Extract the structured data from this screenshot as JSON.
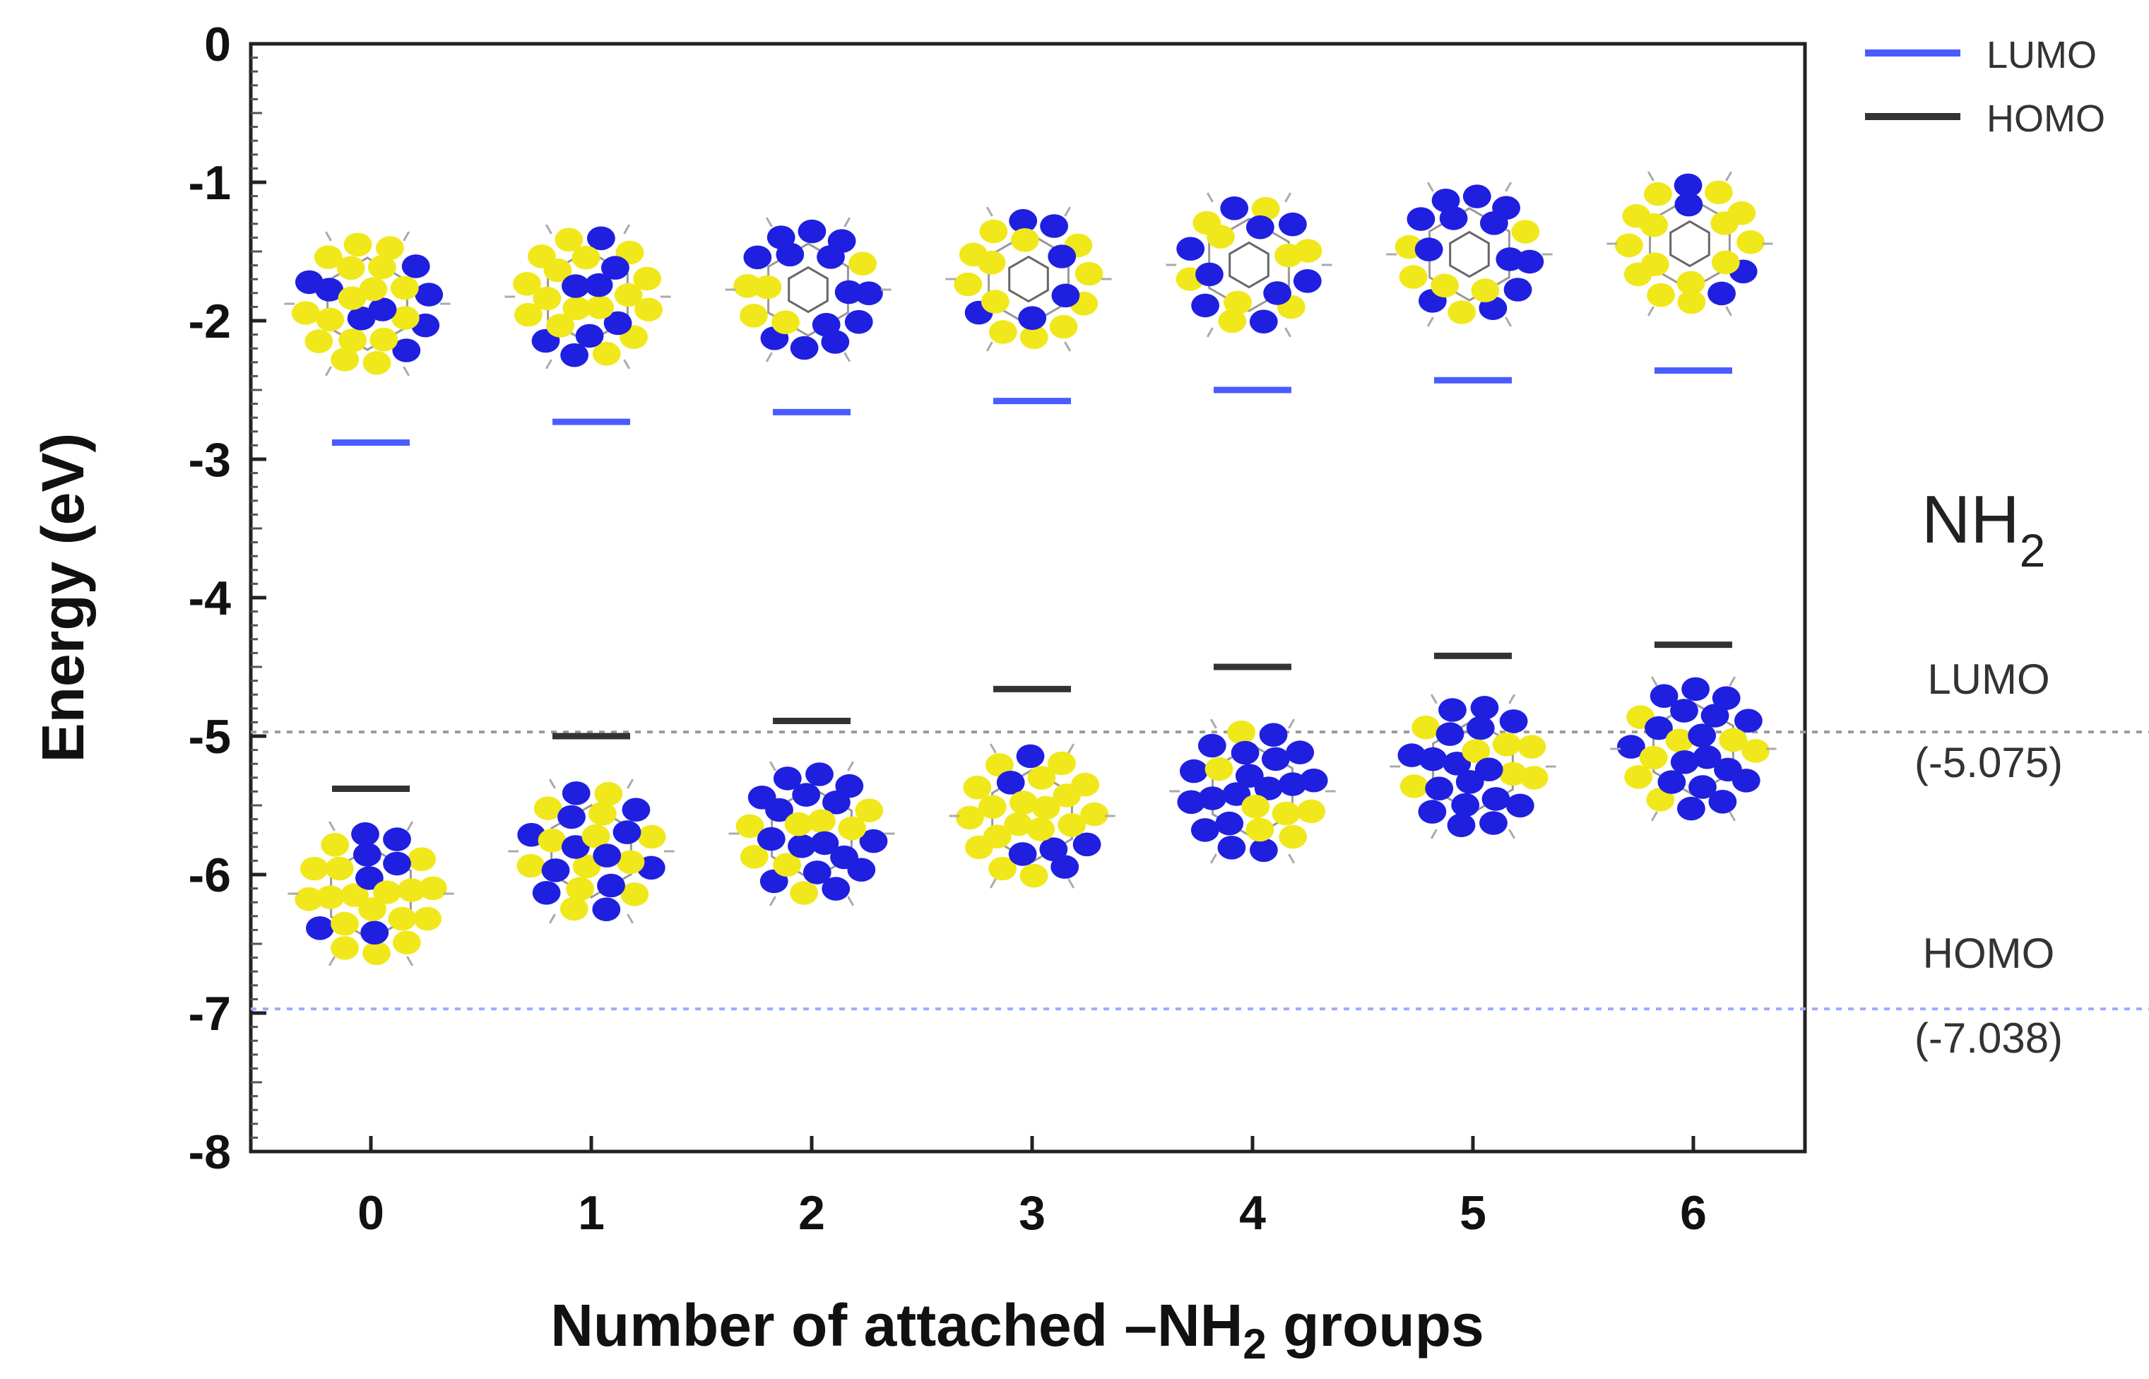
{
  "chart_data": {
    "type": "scatter",
    "xlabel_main": "Number of attached –NH",
    "xlabel_sub": "2",
    "xlabel_tail": " groups",
    "ylabel": "Energy (eV)",
    "ylim": [
      -8,
      0
    ],
    "yticks": [
      "0",
      "-1",
      "-2",
      "-3",
      "-4",
      "-5",
      "-6",
      "-7",
      "-8"
    ],
    "categories": [
      "0",
      "1",
      "2",
      "3",
      "4",
      "5",
      "6"
    ],
    "series": [
      {
        "name": "LUMO",
        "color": "#4a5cff",
        "values": [
          -2.88,
          -2.73,
          -2.66,
          -2.58,
          -2.5,
          -2.43,
          -2.36
        ]
      },
      {
        "name": "HOMO",
        "color": "#333333",
        "values": [
          -5.38,
          -5.0,
          -4.89,
          -4.66,
          -4.5,
          -4.42,
          -4.34
        ]
      }
    ],
    "reference_lines": [
      {
        "label": "LUMO",
        "value_text": "(-5.075)",
        "y": -4.97,
        "color": "#9a9a9a"
      },
      {
        "label": "HOMO",
        "value_text": "(-7.038)",
        "y": -6.97,
        "color": "#9da9ff"
      }
    ],
    "side_label_main": "NH",
    "side_label_sub": "2",
    "legend_position": "top-right",
    "grid": false
  },
  "orbital_colors": {
    "positive": "#1f1fe0",
    "negative": "#f0e81a"
  }
}
